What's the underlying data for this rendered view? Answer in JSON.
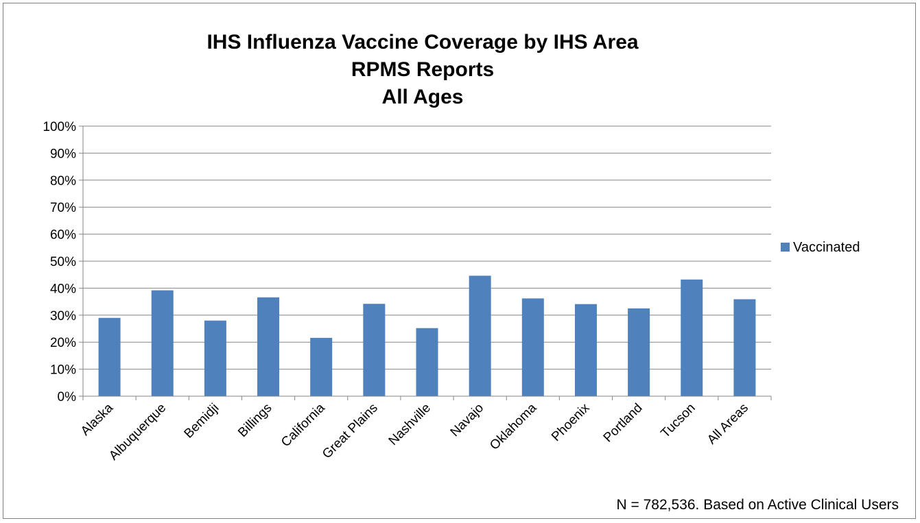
{
  "chart_data": {
    "type": "bar",
    "title": [
      "IHS Influenza Vaccine Coverage by IHS Area",
      "RPMS Reports",
      "All Ages"
    ],
    "categories": [
      "Alaska",
      "Albuquerque",
      "Bemidji",
      "Billings",
      "California",
      "Great Plains",
      "Nashville",
      "Navajo",
      "Oklahoma",
      "Phoenix",
      "Portland",
      "Tucson",
      "All Areas"
    ],
    "series": [
      {
        "name": "Vaccinated",
        "color": "#4f81bd",
        "values": [
          0.29,
          0.392,
          0.28,
          0.366,
          0.216,
          0.342,
          0.252,
          0.446,
          0.362,
          0.341,
          0.325,
          0.432,
          0.359
        ]
      }
    ],
    "ylim": [
      0,
      1
    ],
    "y_ticks": [
      0,
      0.1,
      0.2,
      0.3,
      0.4,
      0.5,
      0.6,
      0.7,
      0.8,
      0.9,
      1.0
    ],
    "y_tick_labels": [
      "0%",
      "10%",
      "20%",
      "30%",
      "40%",
      "50%",
      "60%",
      "70%",
      "80%",
      "90%",
      "100%"
    ],
    "xlabel": "",
    "ylabel": "",
    "grid": true,
    "legend_position": "right",
    "annotation": "N = 782,536. Based on Active Clinical Users"
  }
}
